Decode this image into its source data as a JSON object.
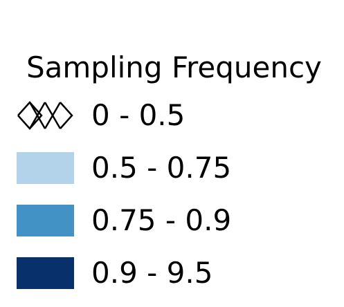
{
  "legend": {
    "title": "Sampling Frequency",
    "items": [
      {
        "label": "0 - 0.5",
        "fill": "none",
        "pattern": "crosshatch-icon",
        "stroke": "#000000"
      },
      {
        "label": "0.5 - 0.75",
        "fill": "#b3d3ea"
      },
      {
        "label": "0.75 - 0.9",
        "fill": "#4292c6"
      },
      {
        "label": "0.9 - 9.5",
        "fill": "#08306b"
      }
    ]
  }
}
